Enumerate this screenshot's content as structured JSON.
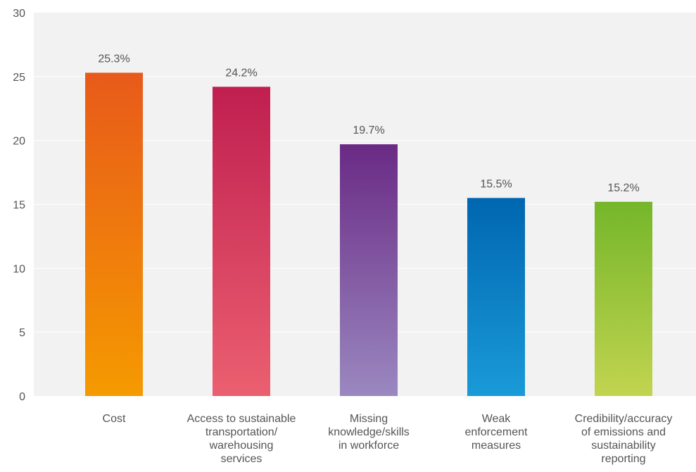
{
  "chart_data": {
    "type": "bar",
    "categories": [
      "Cost",
      "Access to sustainable transportation/ warehousing services",
      "Missing knowledge/skills in workforce",
      "Weak enforcement measures",
      "Credibility/accuracy of emissions and sustainability reporting"
    ],
    "category_lines": [
      [
        "Cost"
      ],
      [
        "Access to sustainable",
        "transportation/",
        "warehousing",
        "services"
      ],
      [
        "Missing",
        "knowledge/skills",
        "in workforce"
      ],
      [
        "Weak",
        "enforcement",
        "measures"
      ],
      [
        "Credibility/accuracy",
        "of emissions and",
        "sustainability",
        "reporting"
      ]
    ],
    "values": [
      25.3,
      24.2,
      19.7,
      15.5,
      15.2
    ],
    "data_labels": [
      "25.3%",
      "24.2%",
      "19.7%",
      "15.5%",
      "15.2%"
    ],
    "ylim": [
      0,
      30
    ],
    "yticks": [
      0,
      5,
      10,
      15,
      20,
      25,
      30
    ],
    "grid": true,
    "bar_colors": [
      {
        "top": "#e85a1a",
        "bottom": "#f59a00"
      },
      {
        "top": "#c01f50",
        "bottom": "#eb6070"
      },
      {
        "top": "#6a2a85",
        "bottom": "#9a88c0"
      },
      {
        "top": "#0066b0",
        "bottom": "#1a9ad8"
      },
      {
        "top": "#75b62a",
        "bottom": "#c2d450"
      }
    ],
    "plot_background": "#f2f2f2",
    "gridline_color": "#ffffff",
    "text_color": "#555555"
  }
}
